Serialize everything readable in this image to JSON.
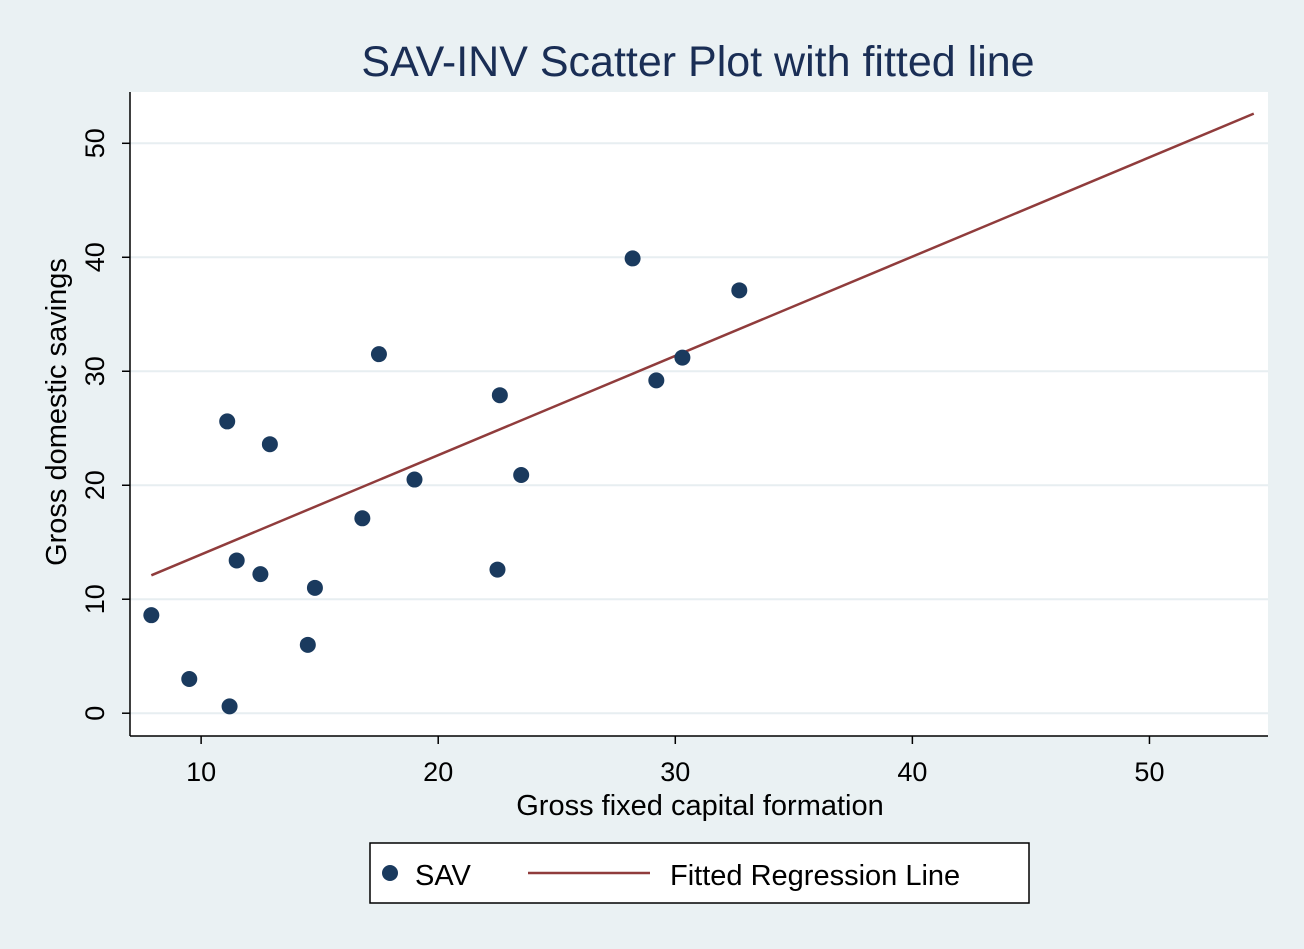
{
  "colors": {
    "background": "#eaf1f3",
    "plot_background": "#ffffff",
    "gridline": "#e7eef1",
    "text": "#000000",
    "title": "#1a2e55",
    "marker": "#1a3a5e",
    "line": "#903c3c"
  },
  "chart_data": {
    "type": "scatter",
    "title": "SAV-INV Scatter Plot with fitted line",
    "xlabel": "Gross fixed capital formation",
    "ylabel": "Gross domestic savings",
    "xlim": [
      7,
      55
    ],
    "ylim": [
      -2,
      54.5
    ],
    "xticks": [
      10,
      20,
      30,
      40,
      50
    ],
    "yticks": [
      0,
      10,
      20,
      30,
      40,
      50
    ],
    "grid": "horizontal",
    "legend_position": "bottom",
    "series": [
      {
        "name": "SAV",
        "kind": "scatter",
        "points": [
          {
            "x": 7.9,
            "y": 8.6
          },
          {
            "x": 9.5,
            "y": 3.0
          },
          {
            "x": 11.1,
            "y": 25.6
          },
          {
            "x": 11.2,
            "y": 0.6
          },
          {
            "x": 11.5,
            "y": 13.4
          },
          {
            "x": 12.5,
            "y": 12.2
          },
          {
            "x": 12.9,
            "y": 23.6
          },
          {
            "x": 14.5,
            "y": 6.0
          },
          {
            "x": 14.8,
            "y": 11.0
          },
          {
            "x": 16.8,
            "y": 17.1
          },
          {
            "x": 17.5,
            "y": 31.5
          },
          {
            "x": 19.0,
            "y": 20.5
          },
          {
            "x": 22.5,
            "y": 12.6
          },
          {
            "x": 22.6,
            "y": 27.9
          },
          {
            "x": 23.5,
            "y": 20.9
          },
          {
            "x": 28.2,
            "y": 39.9
          },
          {
            "x": 29.2,
            "y": 29.2
          },
          {
            "x": 30.3,
            "y": 31.2
          },
          {
            "x": 32.7,
            "y": 37.1
          }
        ]
      },
      {
        "name": "Fitted Regression Line",
        "kind": "line",
        "points": [
          {
            "x": 7.9,
            "y": 12.1
          },
          {
            "x": 54.4,
            "y": 52.6
          }
        ]
      }
    ]
  }
}
